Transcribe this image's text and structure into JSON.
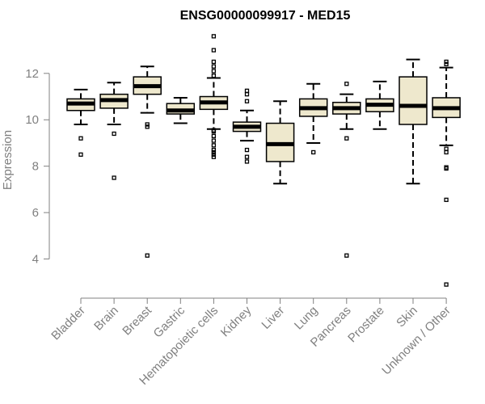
{
  "chart_data": {
    "type": "box",
    "title": "ENSG00000099917 - MED15",
    "xlabel": "",
    "ylabel": "Expression",
    "ylim": [
      2.8,
      13.7
    ],
    "yticks": [
      4,
      6,
      8,
      10,
      12
    ],
    "grid": false,
    "colors": {
      "box_fill": "#EEE8CD",
      "stroke": "#000000",
      "axis": "#808080"
    },
    "categories": [
      "Bladder",
      "Brain",
      "Breast",
      "Gastric",
      "Hematopoietic cells",
      "Kidney",
      "Liver",
      "Lung",
      "Pancreas",
      "Prostate",
      "Skin",
      "Unknown / Other"
    ],
    "boxes": [
      {
        "label": "Bladder",
        "whisker_low": 9.8,
        "q1": 10.4,
        "median": 10.7,
        "q3": 10.9,
        "whisker_high": 11.3,
        "outliers": [
          9.2,
          8.5
        ]
      },
      {
        "label": "Brain",
        "whisker_low": 9.8,
        "q1": 10.5,
        "median": 10.85,
        "q3": 11.1,
        "whisker_high": 11.6,
        "outliers": [
          9.4,
          7.5
        ]
      },
      {
        "label": "Breast",
        "whisker_low": 10.3,
        "q1": 11.1,
        "median": 11.45,
        "q3": 11.85,
        "whisker_high": 12.3,
        "outliers": [
          9.8,
          9.7,
          4.15
        ]
      },
      {
        "label": "Gastric",
        "whisker_low": 9.85,
        "q1": 10.25,
        "median": 10.4,
        "q3": 10.7,
        "whisker_high": 10.95,
        "outliers": []
      },
      {
        "label": "Hematopoietic cells",
        "whisker_low": 9.6,
        "q1": 10.45,
        "median": 10.75,
        "q3": 11.0,
        "whisker_high": 11.8,
        "outliers": [
          13.6,
          13.0,
          12.5,
          12.3,
          12.1,
          11.9,
          9.55,
          9.5,
          9.3,
          9.1,
          8.9,
          8.7,
          8.6,
          8.5,
          8.4
        ]
      },
      {
        "label": "Kidney",
        "whisker_low": 9.1,
        "q1": 9.5,
        "median": 9.7,
        "q3": 9.9,
        "whisker_high": 10.4,
        "outliers": [
          11.25,
          11.1,
          10.8,
          8.7,
          8.4,
          8.2
        ]
      },
      {
        "label": "Liver",
        "whisker_low": 7.25,
        "q1": 8.2,
        "median": 8.95,
        "q3": 9.85,
        "whisker_high": 10.8,
        "outliers": []
      },
      {
        "label": "Lung",
        "whisker_low": 9.0,
        "q1": 10.15,
        "median": 10.5,
        "q3": 10.9,
        "whisker_high": 11.55,
        "outliers": [
          8.6
        ]
      },
      {
        "label": "Pancreas",
        "whisker_low": 9.6,
        "q1": 10.25,
        "median": 10.5,
        "q3": 10.75,
        "whisker_high": 11.1,
        "outliers": [
          11.55,
          9.2,
          4.15
        ]
      },
      {
        "label": "Prostate",
        "whisker_low": 9.6,
        "q1": 10.35,
        "median": 10.65,
        "q3": 10.9,
        "whisker_high": 11.65,
        "outliers": []
      },
      {
        "label": "Skin",
        "whisker_low": 7.25,
        "q1": 9.8,
        "median": 10.6,
        "q3": 11.85,
        "whisker_high": 12.6,
        "outliers": []
      },
      {
        "label": "Unknown / Other",
        "whisker_low": 8.9,
        "q1": 10.1,
        "median": 10.5,
        "q3": 10.95,
        "whisker_high": 12.25,
        "outliers": [
          12.5,
          12.4,
          8.75,
          8.6,
          7.95,
          7.9,
          6.55,
          2.9
        ]
      }
    ]
  }
}
